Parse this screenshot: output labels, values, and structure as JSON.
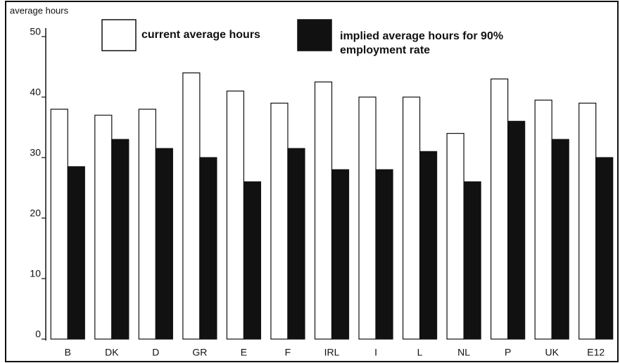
{
  "chart_data": {
    "type": "bar",
    "y_label": "average hours",
    "categories": [
      "B",
      "DK",
      "D",
      "GR",
      "E",
      "F",
      "IRL",
      "I",
      "L",
      "NL",
      "P",
      "UK",
      "E12"
    ],
    "series": [
      {
        "name": "current average hours",
        "color": "#ffffff",
        "values": [
          38,
          37,
          38,
          44,
          41,
          39,
          42.5,
          40,
          40,
          34,
          43,
          39.5,
          39
        ]
      },
      {
        "name": "implied average hours for 90% employment rate",
        "color": "#111111",
        "values": [
          28.5,
          33,
          31.5,
          30,
          26,
          31.5,
          28,
          28,
          31,
          26,
          36,
          33,
          30
        ]
      }
    ],
    "ylim": [
      0,
      50
    ],
    "yticks": [
      0,
      10,
      20,
      30,
      40,
      50
    ],
    "grid": false
  }
}
